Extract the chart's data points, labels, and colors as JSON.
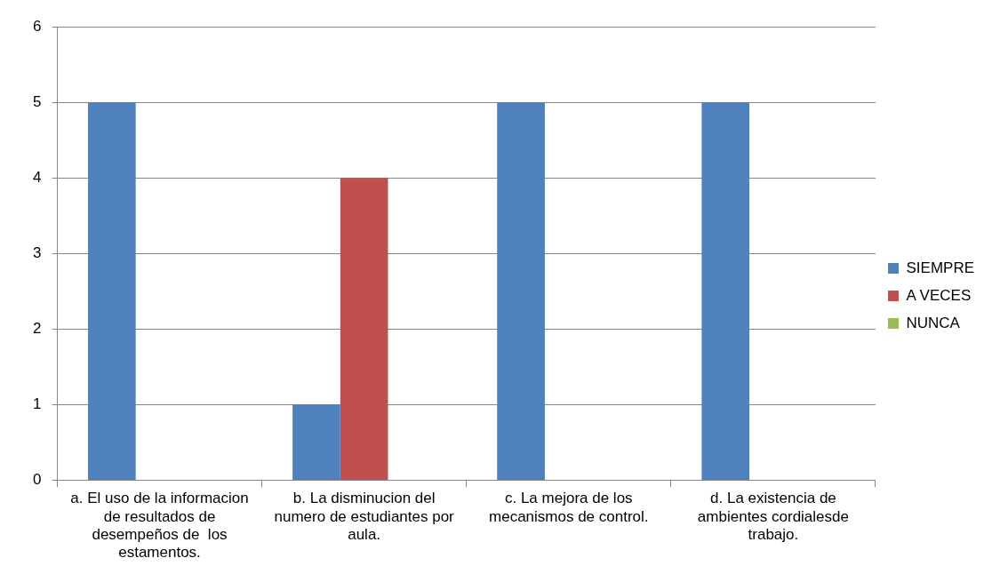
{
  "chart_data": {
    "type": "bar",
    "categories": [
      "a. El uso de la informacion de resultados de desempeños de  los estamentos.",
      "b. La disminucion del numero de estudiantes por aula.",
      "c. La mejora de los mecanismos de control.",
      "d. La existencia de ambientes cordialesde trabajo."
    ],
    "series": [
      {
        "name": "SIEMPRE",
        "color": "#4f81bd",
        "values": [
          5,
          1,
          5,
          5
        ]
      },
      {
        "name": "A VECES",
        "color": "#c0504d",
        "values": [
          0,
          4,
          0,
          0
        ]
      },
      {
        "name": "NUNCA",
        "color": "#9bbb59",
        "values": [
          0,
          0,
          0,
          0
        ]
      }
    ],
    "ylim": [
      0,
      6
    ],
    "yticks": [
      0,
      1,
      2,
      3,
      4,
      5,
      6
    ],
    "grid": "y",
    "legend": "right"
  }
}
